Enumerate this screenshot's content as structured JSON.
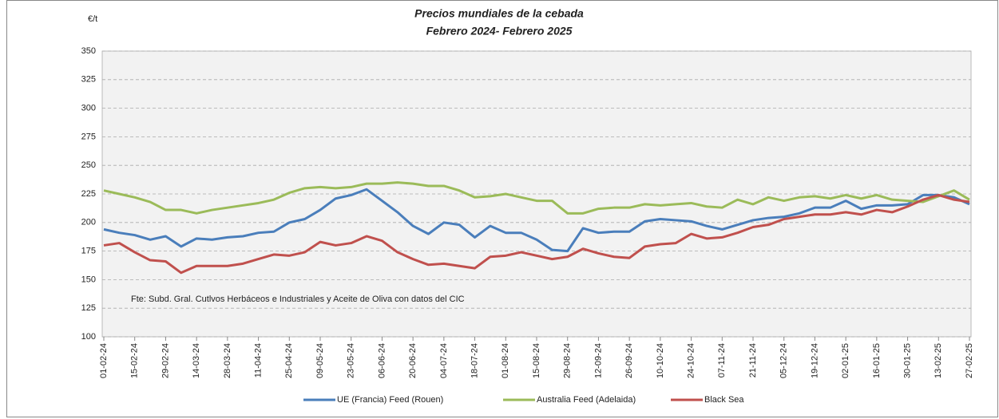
{
  "chart_data": {
    "type": "line",
    "title": "Precios mundiales de la cebada",
    "subtitle": "Febrero 2024- Febrero 2025",
    "y_label": "€/t",
    "annotation": "Fte: Subd. Gral. Cutlvos Herbáceos e Industriales y Aceite de Oliva con datos del CIC",
    "categories": [
      "01-02-24",
      null,
      "15-02-24",
      null,
      "29-02-24",
      null,
      "14-03-24",
      null,
      "28-03-24",
      null,
      "11-04-24",
      null,
      "25-04-24",
      null,
      "09-05-24",
      null,
      "23-05-24",
      null,
      "06-06-24",
      null,
      "20-06-24",
      null,
      "04-07-24",
      null,
      "18-07-24",
      null,
      "01-08-24",
      null,
      "15-08-24",
      null,
      "29-08-24",
      null,
      "12-09-24",
      null,
      "26-09-24",
      null,
      "10-10-24",
      null,
      "24-10-24",
      null,
      "07-11-24",
      null,
      "21-11-24",
      null,
      "05-12-24",
      null,
      "19-12-24",
      null,
      "02-01-25",
      null,
      "16-01-25",
      null,
      "30-01-25",
      null,
      "13-02-25",
      null,
      "27-02-25"
    ],
    "series": [
      {
        "name": "UE (Francia) Feed (Rouen)",
        "color": "#4a7ebb",
        "values": [
          194,
          191,
          189,
          185,
          188,
          179,
          186,
          185,
          187,
          188,
          191,
          192,
          200,
          203,
          211,
          221,
          224,
          229,
          219,
          209,
          197,
          190,
          200,
          198,
          187,
          197,
          191,
          191,
          185,
          176,
          175,
          195,
          191,
          192,
          192,
          201,
          203,
          202,
          201,
          197,
          194,
          198,
          202,
          204,
          205,
          208,
          213,
          213,
          219,
          212,
          215,
          215,
          216,
          224,
          224,
          222,
          216
        ]
      },
      {
        "name": "Australia Feed (Adelaida)",
        "color": "#9bbb59",
        "values": [
          228,
          225,
          222,
          218,
          211,
          211,
          208,
          211,
          213,
          215,
          217,
          220,
          226,
          230,
          231,
          230,
          231,
          234,
          234,
          235,
          234,
          232,
          232,
          228,
          222,
          223,
          225,
          222,
          219,
          219,
          208,
          208,
          212,
          213,
          213,
          216,
          215,
          216,
          217,
          214,
          213,
          220,
          216,
          222,
          219,
          222,
          223,
          221,
          224,
          221,
          224,
          220,
          219,
          218,
          223,
          228,
          220
        ]
      },
      {
        "name": "Black Sea",
        "color": "#c0504d",
        "values": [
          180,
          182,
          174,
          167,
          166,
          156,
          162,
          162,
          162,
          164,
          168,
          172,
          171,
          174,
          183,
          180,
          182,
          188,
          184,
          174,
          168,
          163,
          164,
          162,
          160,
          170,
          171,
          174,
          171,
          168,
          170,
          177,
          173,
          170,
          169,
          179,
          181,
          182,
          190,
          186,
          187,
          191,
          196,
          198,
          203,
          205,
          207,
          207,
          209,
          207,
          211,
          209,
          214,
          220,
          224,
          220,
          218
        ]
      }
    ],
    "ylim": [
      100,
      350
    ],
    "yticks": [
      100,
      125,
      150,
      175,
      200,
      225,
      250,
      275,
      300,
      325,
      350
    ],
    "grid": true
  }
}
